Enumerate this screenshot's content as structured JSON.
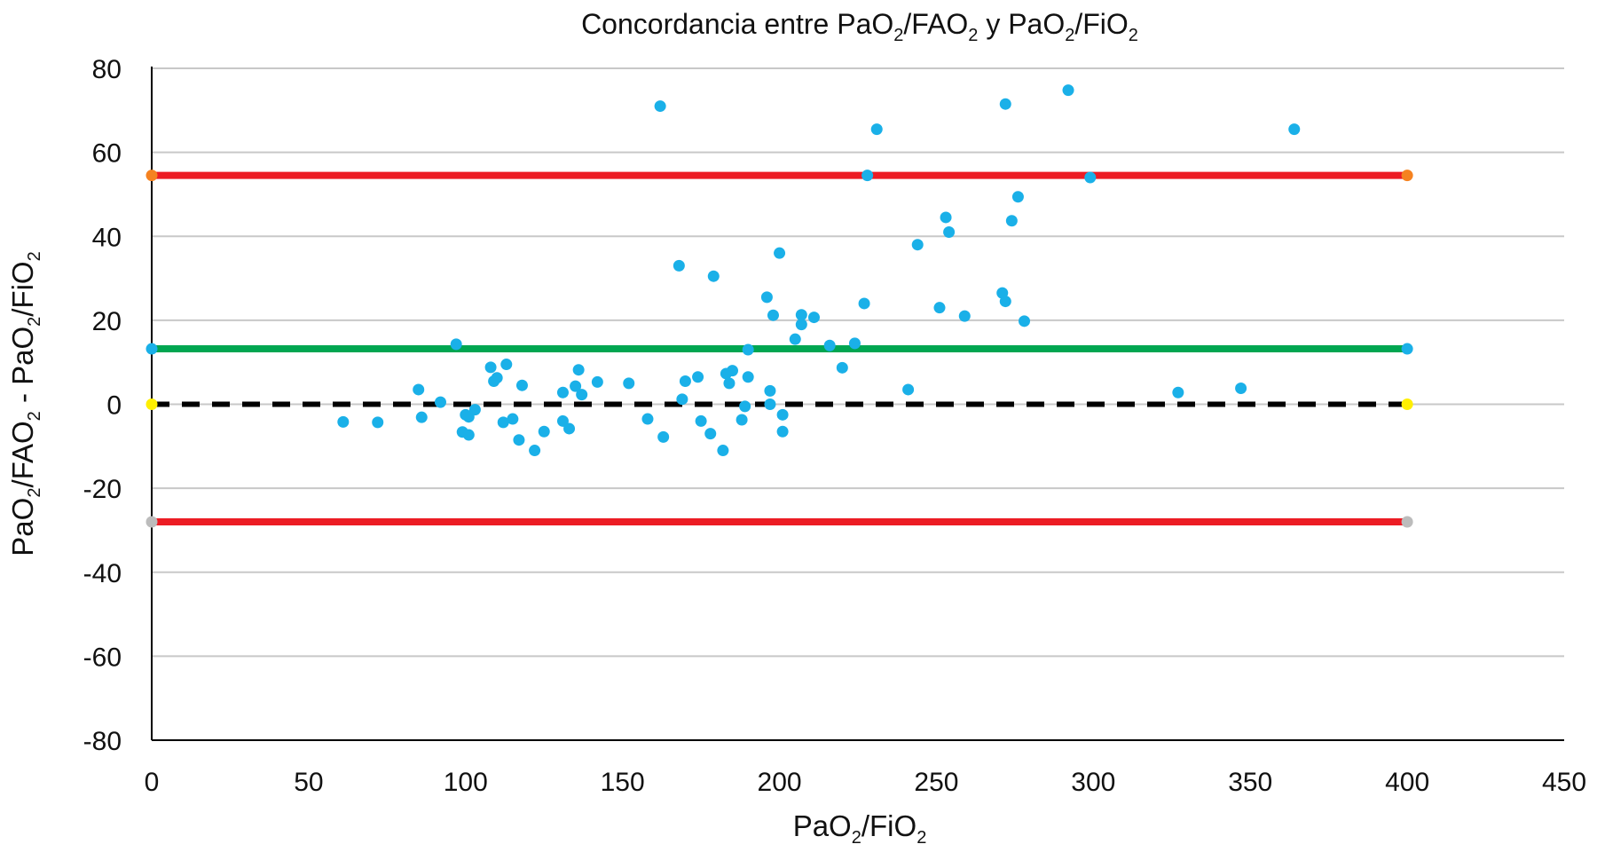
{
  "chart_data": {
    "type": "scatter",
    "title": {
      "parts": [
        [
          "Concordancia entre PaO",
          "2",
          "/FAO",
          "2",
          " y PaO",
          "2",
          "/FiO",
          "2"
        ]
      ]
    },
    "xlabel": {
      "parts": [
        "PaO",
        "2",
        "/FiO",
        "2"
      ]
    },
    "ylabel": {
      "parts": [
        "PaO",
        "2",
        "/FAO",
        "2",
        "  -  PaO",
        "2",
        "/FiO",
        "2"
      ]
    },
    "xlim": [
      0,
      450
    ],
    "ylim": [
      -80,
      80
    ],
    "x_ticks": [
      "0",
      "50",
      "100",
      "150",
      "200",
      "250",
      "300",
      "350",
      "400",
      "450"
    ],
    "y_ticks": [
      "80",
      "60",
      "40",
      "20",
      "0",
      "-20",
      "-40",
      "-60",
      "-80"
    ],
    "horizontal_grid": true,
    "reference_lines": [
      {
        "name": "upper limit of agreement",
        "y": 54.5,
        "x": [
          0,
          400
        ],
        "color": "#ec1c24",
        "endpoint_color": "#f58220",
        "style": "solid"
      },
      {
        "name": "mean difference",
        "y": 13.2,
        "x": [
          0,
          400
        ],
        "color": "#00a651",
        "endpoint_color": "#1ab0e8",
        "style": "solid"
      },
      {
        "name": "zero line",
        "y": 0,
        "x": [
          0,
          400
        ],
        "color": "#000000",
        "endpoint_color": "#ffef00",
        "style": "dashed"
      },
      {
        "name": "lower limit of agreement",
        "y": -28,
        "x": [
          0,
          400
        ],
        "color": "#ec1c24",
        "endpoint_color": "#bcbcbc",
        "style": "solid"
      }
    ],
    "point_color": "#1ab0e8",
    "points": [
      {
        "x": 61,
        "y": -4.2
      },
      {
        "x": 72,
        "y": -4.3
      },
      {
        "x": 85,
        "y": 3.5
      },
      {
        "x": 86,
        "y": -3.1
      },
      {
        "x": 92,
        "y": 0.5
      },
      {
        "x": 97,
        "y": 14.3
      },
      {
        "x": 99,
        "y": -6.6
      },
      {
        "x": 100,
        "y": -2.5
      },
      {
        "x": 101,
        "y": -3.0
      },
      {
        "x": 101,
        "y": -7.3
      },
      {
        "x": 103,
        "y": -1.3
      },
      {
        "x": 108,
        "y": 8.8
      },
      {
        "x": 109,
        "y": 5.5
      },
      {
        "x": 110,
        "y": 6.3
      },
      {
        "x": 112,
        "y": -4.3
      },
      {
        "x": 113,
        "y": 9.5
      },
      {
        "x": 115,
        "y": -3.5
      },
      {
        "x": 117,
        "y": -8.5
      },
      {
        "x": 118,
        "y": 4.5
      },
      {
        "x": 122,
        "y": -11.0
      },
      {
        "x": 125,
        "y": -6.5
      },
      {
        "x": 131,
        "y": -4.0
      },
      {
        "x": 131,
        "y": 2.8
      },
      {
        "x": 133,
        "y": -5.8
      },
      {
        "x": 135,
        "y": 4.3
      },
      {
        "x": 136,
        "y": 8.2
      },
      {
        "x": 137,
        "y": 2.3
      },
      {
        "x": 142,
        "y": 5.3
      },
      {
        "x": 152,
        "y": 5.0
      },
      {
        "x": 158,
        "y": -3.5
      },
      {
        "x": 162,
        "y": 71.0
      },
      {
        "x": 163,
        "y": -7.8
      },
      {
        "x": 168,
        "y": 33.0
      },
      {
        "x": 169,
        "y": 1.2
      },
      {
        "x": 170,
        "y": 5.5
      },
      {
        "x": 174,
        "y": 6.5
      },
      {
        "x": 175,
        "y": -4.0
      },
      {
        "x": 178,
        "y": -7.0
      },
      {
        "x": 179,
        "y": 30.5
      },
      {
        "x": 182,
        "y": -11.0
      },
      {
        "x": 183,
        "y": 7.3
      },
      {
        "x": 184,
        "y": 5.0
      },
      {
        "x": 185,
        "y": 8.0
      },
      {
        "x": 188,
        "y": -3.7
      },
      {
        "x": 189,
        "y": -0.5
      },
      {
        "x": 190,
        "y": 13.0
      },
      {
        "x": 190,
        "y": 6.5
      },
      {
        "x": 196,
        "y": 25.5
      },
      {
        "x": 197,
        "y": 0.0
      },
      {
        "x": 197,
        "y": 3.2
      },
      {
        "x": 198,
        "y": 21.2
      },
      {
        "x": 200,
        "y": 36.0
      },
      {
        "x": 201,
        "y": -2.5
      },
      {
        "x": 201,
        "y": -6.5
      },
      {
        "x": 205,
        "y": 15.5
      },
      {
        "x": 207,
        "y": 19.0
      },
      {
        "x": 207,
        "y": 21.3
      },
      {
        "x": 211,
        "y": 20.7
      },
      {
        "x": 216,
        "y": 14.0
      },
      {
        "x": 220,
        "y": 8.7
      },
      {
        "x": 224,
        "y": 14.5
      },
      {
        "x": 227,
        "y": 24.0
      },
      {
        "x": 228,
        "y": 54.5
      },
      {
        "x": 231,
        "y": 65.5
      },
      {
        "x": 241,
        "y": 3.5
      },
      {
        "x": 244,
        "y": 38.0
      },
      {
        "x": 251,
        "y": 23.0
      },
      {
        "x": 253,
        "y": 44.5
      },
      {
        "x": 254,
        "y": 41.0
      },
      {
        "x": 259,
        "y": 21.0
      },
      {
        "x": 271,
        "y": 26.5
      },
      {
        "x": 272,
        "y": 71.5
      },
      {
        "x": 272,
        "y": 24.5
      },
      {
        "x": 274,
        "y": 43.7
      },
      {
        "x": 276,
        "y": 49.4
      },
      {
        "x": 278,
        "y": 19.8
      },
      {
        "x": 292,
        "y": 74.8
      },
      {
        "x": 299,
        "y": 54.0
      },
      {
        "x": 327,
        "y": 2.8
      },
      {
        "x": 347,
        "y": 3.8
      },
      {
        "x": 364,
        "y": 65.5
      }
    ]
  }
}
